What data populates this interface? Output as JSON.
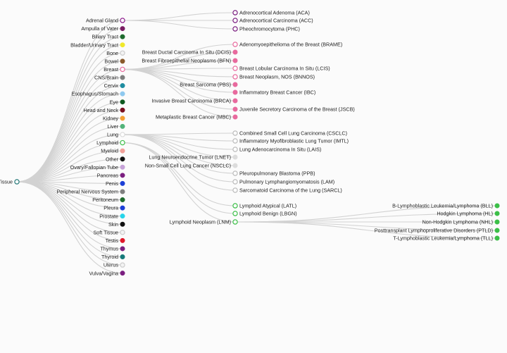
{
  "tree": {
    "root": {
      "label": "Tissue",
      "color": "#ffffff"
    },
    "tissues": [
      {
        "key": "adrenal",
        "label": "Adrenal Gland",
        "color": "#8b1a8b",
        "expanded": true
      },
      {
        "key": "ampulla",
        "label": "Ampulla of Vater",
        "color": "#7a1d63"
      },
      {
        "key": "biliary",
        "label": "Biliary Tract",
        "color": "#1f6b2e"
      },
      {
        "key": "bladder",
        "label": "Bladder/Urinary Tract",
        "color": "#f0e82a"
      },
      {
        "key": "bone",
        "label": "Bone",
        "color": "#f3f3f3"
      },
      {
        "key": "bowel",
        "label": "Bowel",
        "color": "#8a5a2b"
      },
      {
        "key": "breast",
        "label": "Breast",
        "color": "#e86a9e",
        "expanded": true
      },
      {
        "key": "cns",
        "label": "CNS/Brain",
        "color": "#7f7f7f"
      },
      {
        "key": "cervix",
        "label": "Cervix",
        "color": "#1e8ca0"
      },
      {
        "key": "esophagus",
        "label": "Esophagus/Stomach",
        "color": "#8ec9ef"
      },
      {
        "key": "eye",
        "label": "Eye",
        "color": "#0f5a20"
      },
      {
        "key": "headneck",
        "label": "Head and Neck",
        "color": "#7a1020"
      },
      {
        "key": "kidney",
        "label": "Kidney",
        "color": "#f4a033"
      },
      {
        "key": "liver",
        "label": "Liver",
        "color": "#52b37a"
      },
      {
        "key": "lung",
        "label": "Lung",
        "color": "#dcdcdc",
        "expanded": true
      },
      {
        "key": "lymphoid",
        "label": "Lymphoid",
        "color": "#3cbf48",
        "expanded": true
      },
      {
        "key": "myeloid",
        "label": "Myeloid",
        "color": "#f2a19a"
      },
      {
        "key": "other",
        "label": "Other",
        "color": "#111111"
      },
      {
        "key": "ovary",
        "label": "Ovary/Fallopian Tube",
        "color": "#c6a2d8"
      },
      {
        "key": "pancreas",
        "label": "Pancreas",
        "color": "#7b1f80"
      },
      {
        "key": "penis",
        "label": "Penis",
        "color": "#1c3fd6"
      },
      {
        "key": "pns",
        "label": "Peripheral Nervous System",
        "color": "#808080"
      },
      {
        "key": "peritoneum",
        "label": "Peritoneum",
        "color": "#1f6b2e"
      },
      {
        "key": "pleura",
        "label": "Pleura",
        "color": "#1c3fd6"
      },
      {
        "key": "prostate",
        "label": "Prostate",
        "color": "#27d5ea"
      },
      {
        "key": "skin",
        "label": "Skin",
        "color": "#111111"
      },
      {
        "key": "softtissue",
        "label": "Soft Tissue",
        "color": "#f3f3f3"
      },
      {
        "key": "testis",
        "label": "Testis",
        "color": "#e0182a"
      },
      {
        "key": "thymus",
        "label": "Thymus",
        "color": "#7b1f80"
      },
      {
        "key": "thyroid",
        "label": "Thyroid",
        "color": "#167a7a"
      },
      {
        "key": "uterus",
        "label": "Uterus",
        "color": "#f3f3f3"
      },
      {
        "key": "vulva",
        "label": "Vulva/Vagina",
        "color": "#7b1f80"
      }
    ],
    "subtypes": {
      "adrenal": [
        {
          "label": "Adrenocortical Adenoma (ACA)",
          "color": "#ffffff",
          "stroke": "#7b1f80"
        },
        {
          "label": "Adrenocortical Carcinoma (ACC)",
          "color": "#ffffff",
          "stroke": "#7b1f80"
        },
        {
          "label": "Pheochromocytoma (PHC)",
          "color": "#ffffff",
          "stroke": "#7b1f80"
        }
      ],
      "breast": [
        {
          "label": "Adenomyoepithelioma of the Breast (BRAME)",
          "color": "#ffffff",
          "stroke": "#e86a9e"
        },
        {
          "label": "Breast Ductal Carcinoma In Situ (DCIS)",
          "color": "#e86a9e"
        },
        {
          "label": "Breast Fibroepithelial Neoplasms (BFN)",
          "color": "#e86a9e"
        },
        {
          "label": "Breast Lobular Carcinoma In Situ (LCIS)",
          "color": "#ffffff",
          "stroke": "#e86a9e"
        },
        {
          "label": "Breast Neoplasm, NOS (BNNOS)",
          "color": "#ffffff",
          "stroke": "#e86a9e"
        },
        {
          "label": "Breast Sarcoma (PBS)",
          "color": "#e86a9e"
        },
        {
          "label": "Inflammatory Breast Cancer (IBC)",
          "color": "#e86a9e"
        },
        {
          "label": "Invasive Breast Carcinoma (BRCA)",
          "color": "#e86a9e"
        },
        {
          "label": "Juvenile Secretory Carcinoma of the Breast (JSCB)",
          "color": "#e86a9e"
        },
        {
          "label": "Metaplastic Breast Cancer (MBC)",
          "color": "#e86a9e"
        }
      ],
      "lung": [
        {
          "label": "Combined Small Cell Lung Carcinoma (CSCLC)",
          "color": "#ffffff",
          "stroke": "#bbbbbb"
        },
        {
          "label": "Inflammatory Myofibroblastic Lung Tumor (IMTL)",
          "color": "#ffffff",
          "stroke": "#bbbbbb"
        },
        {
          "label": "Lung Adenocarcinoma In Situ (LAIS)",
          "color": "#ffffff",
          "stroke": "#bbbbbb"
        },
        {
          "label": "Lung Neuroendocrine Tumor (LNET)",
          "color": "#dcdcdc"
        },
        {
          "label": "Non-Small Cell Lung Cancer (NSCLC)",
          "color": "#dcdcdc"
        },
        {
          "label": "Pleuropulmonary Blastoma (PPB)",
          "color": "#ffffff",
          "stroke": "#bbbbbb"
        },
        {
          "label": "Pulmonary Lymphangiomyomatosis (LAM)",
          "color": "#ffffff",
          "stroke": "#bbbbbb"
        },
        {
          "label": "Sarcomatoid Carcinoma of the Lung (SARCL)",
          "color": "#ffffff",
          "stroke": "#bbbbbb"
        }
      ],
      "lymphoid": [
        {
          "label": "Lymphoid Atypical (LATL)",
          "color": "#ffffff",
          "stroke": "#3cbf48"
        },
        {
          "label": "Lymphoid Benign (LBGN)",
          "color": "#ffffff",
          "stroke": "#3cbf48"
        },
        {
          "label": "Lymphoid Neoplasm (LNM)",
          "color": "#ffffff",
          "stroke": "#3cbf48",
          "expanded": true
        }
      ]
    },
    "lnm_children": [
      {
        "label": "B-Lymphoblastic Leukemia/Lymphoma (BLL)",
        "color": "#3cbf48"
      },
      {
        "label": "Hodgkin Lymphoma (HL)",
        "color": "#3cbf48"
      },
      {
        "label": "Non-Hodgkin Lymphoma (NHL)",
        "color": "#3cbf48"
      },
      {
        "label": "Posttransplant Lymphoproliferative Disorders (PTLD)",
        "color": "#3cbf48"
      },
      {
        "label": "T-Lymphoblastic Leukemia/Lymphoma (TLL)",
        "color": "#3cbf48"
      }
    ]
  }
}
